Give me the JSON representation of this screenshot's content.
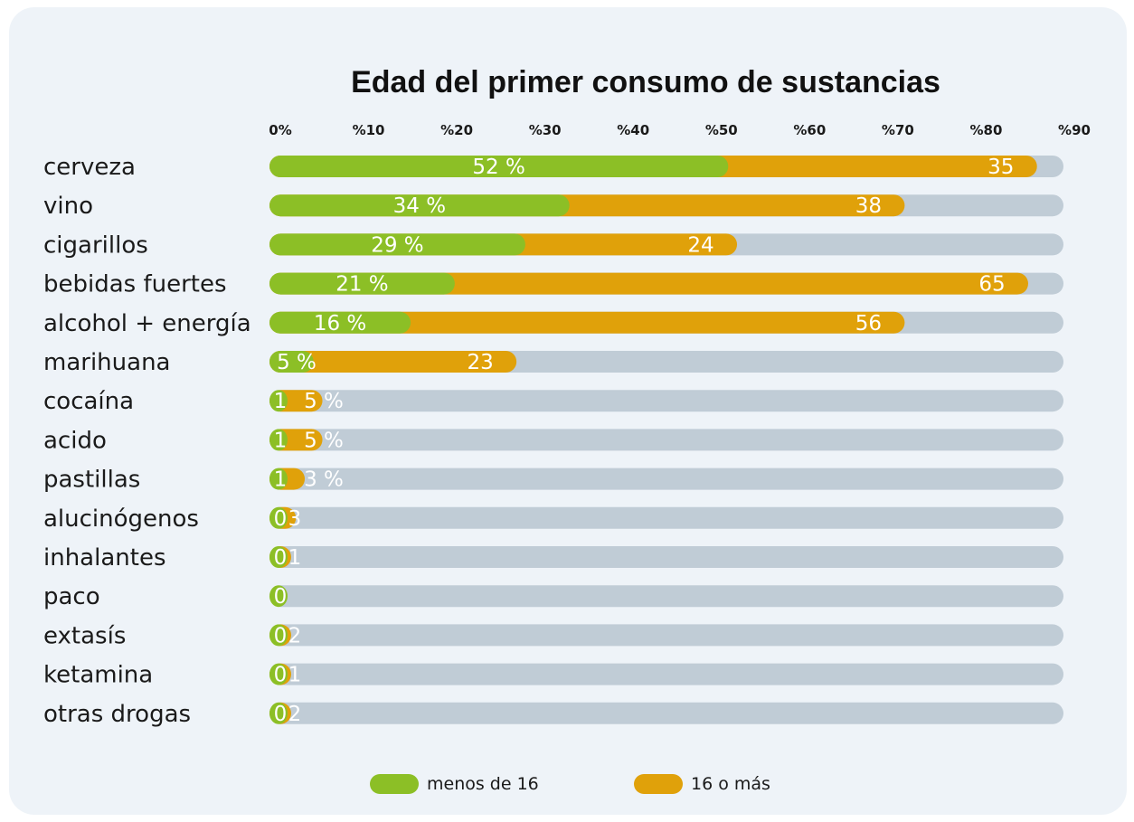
{
  "chart_data": {
    "type": "bar",
    "orientation": "horizontal",
    "stacked": true,
    "title": "Edad del primer consumo de sustancias",
    "xlim": [
      0,
      90
    ],
    "x_ticks": [
      0,
      10,
      20,
      30,
      40,
      50,
      60,
      70,
      80,
      90
    ],
    "x_tick_labels": [
      "0%",
      "%10",
      "%20",
      "%30",
      "%40",
      "%50",
      "%60",
      "%70",
      "%80",
      "%90"
    ],
    "categories": [
      "cerveza",
      "vino",
      "cigarillos",
      "bebidas fuertes",
      "alcohol + energía",
      "marihuana",
      "cocaína",
      "acido",
      "pastillas",
      "alucinógenos",
      "inhalantes",
      "paco",
      "extasís",
      "ketamina",
      "otras drogas"
    ],
    "series": [
      {
        "name": "menos de 16",
        "color": "#8cbf26",
        "values": [
          52,
          34,
          29,
          21,
          16,
          5,
          1,
          1,
          1,
          0,
          0,
          0,
          0,
          0,
          0
        ],
        "labels": [
          "52 %",
          "34 %",
          "29 %",
          "21 %",
          "16 %",
          "5 %",
          "1",
          "1",
          "1",
          "0",
          "0",
          "0",
          "0",
          "0",
          "0"
        ]
      },
      {
        "name": "16 o más",
        "color": "#e0a10a",
        "values": [
          35,
          38,
          24,
          65,
          56,
          23,
          5,
          5,
          3,
          3,
          1,
          0,
          2,
          1,
          2
        ],
        "labels": [
          "35",
          "38",
          "24",
          "65",
          "56",
          "23",
          "5 %",
          "5 %",
          "3 %",
          "3",
          "1",
          "",
          "2",
          "1",
          "2"
        ]
      }
    ],
    "track_color": "#c0ccd6",
    "grid": false,
    "legend_position": "bottom"
  }
}
